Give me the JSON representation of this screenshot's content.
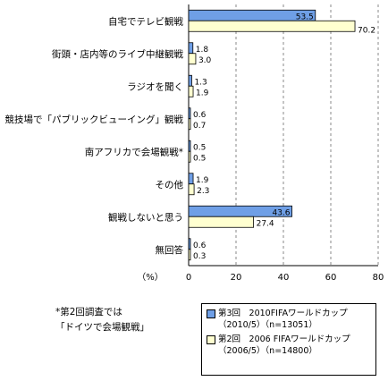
{
  "chart_data": {
    "type": "bar",
    "orientation": "horizontal",
    "categories": [
      "自宅でテレビ観戦",
      "街頭・店内等のライブ中継観戦",
      "ラジオを聞く",
      "競技場で「パブリックビューイング」観戦",
      "南アフリカで会場観戦*",
      "その他",
      "観戦しないと思う",
      "無回答"
    ],
    "series": [
      {
        "name": "第3回 2010FIFAワールドカップ（2010/5）（n=13051）",
        "color": "#6f9fe6",
        "values": [
          53.5,
          1.8,
          1.3,
          0.6,
          0.5,
          1.9,
          43.6,
          0.6
        ],
        "labels": [
          "53.5",
          "1.8",
          "1.3",
          "0.6",
          "0.5",
          "1.9",
          "43.6",
          "0.6"
        ]
      },
      {
        "name": "第2回 2006 FIFAワールドカップ（2006/5）（n=14800）",
        "color": "#ffffd0",
        "values": [
          70.2,
          3.0,
          1.9,
          0.7,
          0.5,
          2.3,
          27.4,
          0.3
        ],
        "labels": [
          "70.2",
          "3.0",
          "1.9",
          "0.7",
          "0.5",
          "2.3",
          "27.4",
          "0.3"
        ]
      }
    ],
    "xlim": [
      0,
      80
    ],
    "xticks": [
      0,
      20,
      40,
      60,
      80
    ],
    "xlabel": "（%）",
    "grid": "vertical dashed"
  },
  "note": {
    "line1": "*第2回調査では",
    "line2": "「ドイツで会場観戦」"
  },
  "legend": {
    "item1": {
      "line1": "第3回　2010FIFAワールドカップ",
      "line2": "（2010/5）（n=13051）"
    },
    "item2": {
      "line1": "第2回　2006 FIFAワールドカップ",
      "line2": "（2006/5）（n=14800）"
    }
  }
}
